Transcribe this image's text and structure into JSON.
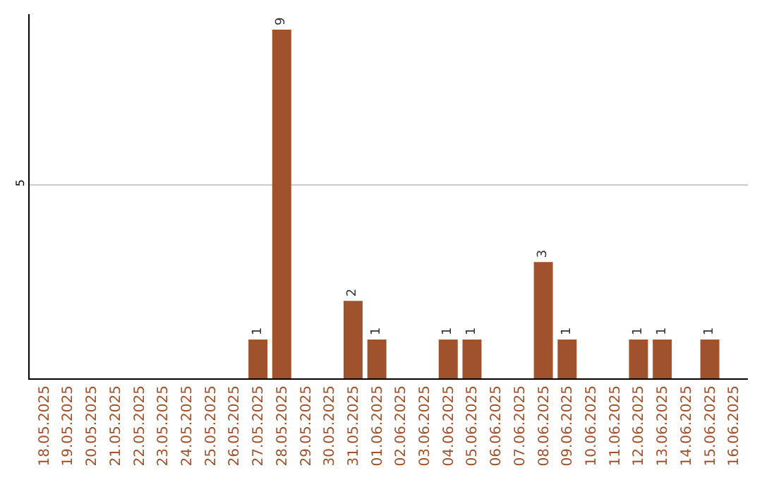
{
  "chart_data": {
    "type": "bar",
    "categories": [
      "18.05.2025",
      "19.05.2025",
      "20.05.2025",
      "21.05.2025",
      "22.05.2025",
      "23.05.2025",
      "24.05.2025",
      "25.05.2025",
      "26.05.2025",
      "27.05.2025",
      "28.05.2025",
      "29.05.2025",
      "30.05.2025",
      "31.05.2025",
      "01.06.2025",
      "02.06.2025",
      "03.06.2025",
      "04.06.2025",
      "05.06.2025",
      "06.06.2025",
      "07.06.2025",
      "08.06.2025",
      "09.06.2025",
      "10.06.2025",
      "11.06.2025",
      "12.06.2025",
      "13.06.2025",
      "14.06.2025",
      "15.06.2025",
      "16.06.2025"
    ],
    "values": [
      0,
      0,
      0,
      0,
      0,
      0,
      0,
      0,
      0,
      1,
      9,
      0,
      0,
      2,
      1,
      0,
      0,
      1,
      1,
      0,
      0,
      3,
      1,
      0,
      0,
      1,
      1,
      0,
      1,
      0
    ],
    "value_labels": [
      null,
      null,
      null,
      null,
      null,
      null,
      null,
      null,
      null,
      "1",
      "9",
      null,
      null,
      "2",
      "1",
      null,
      null,
      "1",
      "1",
      null,
      null,
      "3",
      "1",
      null,
      null,
      "1",
      "1",
      null,
      "1",
      null
    ],
    "color": "#a0522d",
    "ylim": [
      0,
      9.4
    ],
    "yticks": [
      5
    ],
    "grid": "y",
    "legend": false
  }
}
